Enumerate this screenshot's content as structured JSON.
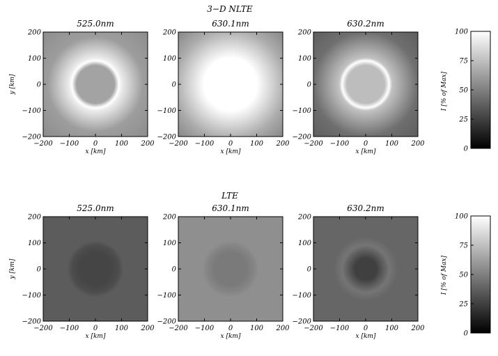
{
  "rows": [
    {
      "title": "3−D NLTE",
      "colorbar": {
        "label": "I [% of Max]",
        "ticks": [
          0,
          25,
          50,
          75,
          100
        ]
      },
      "panels": [
        {
          "title": "525.0nm",
          "image": {
            "background": 0.55,
            "disk": 0.64,
            "ring": 1.0,
            "ring_width": 0.05,
            "glow": 0.22,
            "glow_width": 0.32
          }
        },
        {
          "title": "630.1nm",
          "image": {
            "background": 0.52,
            "disk": 1.0,
            "ring": 1.0,
            "ring_width": 0.05,
            "glow": 0.5,
            "glow_width": 0.42
          }
        },
        {
          "title": "630.2nm",
          "image": {
            "background": 0.36,
            "disk": 0.74,
            "ring": 1.0,
            "ring_width": 0.05,
            "glow": 0.25,
            "glow_width": 0.38
          }
        }
      ]
    },
    {
      "title": "LTE",
      "colorbar": {
        "label": "I [% of Max]",
        "ticks": [
          0,
          25,
          50,
          75,
          100
        ]
      },
      "panels": [
        {
          "title": "525.0nm",
          "image": {
            "background": 0.36,
            "disk": 0.27,
            "ring": 0.3,
            "ring_width": 0.08,
            "glow": 0.0,
            "glow_width": 0.3
          }
        },
        {
          "title": "630.1nm",
          "image": {
            "background": 0.56,
            "disk": 0.48,
            "ring": 0.52,
            "ring_width": 0.08,
            "glow": 0.0,
            "glow_width": 0.3
          }
        },
        {
          "title": "630.2nm",
          "image": {
            "background": 0.4,
            "disk": 0.25,
            "ring": 0.46,
            "ring_width": 0.14,
            "glow": 0.0,
            "glow_width": 0.3
          }
        }
      ]
    }
  ],
  "chart_data": {
    "type": "heatmap",
    "xlabel": "x [km]",
    "ylabel": "y [km]",
    "xlim": [
      -200,
      200
    ],
    "ylim": [
      -200,
      200
    ],
    "xticks": [
      -200,
      -100,
      0,
      100,
      200
    ],
    "yticks": [
      -200,
      -100,
      0,
      100,
      200
    ],
    "colormap": "grayscale",
    "color_range": [
      0,
      100
    ],
    "feature": {
      "shape": "circle",
      "center": [
        0,
        0
      ],
      "radius": 90
    }
  }
}
